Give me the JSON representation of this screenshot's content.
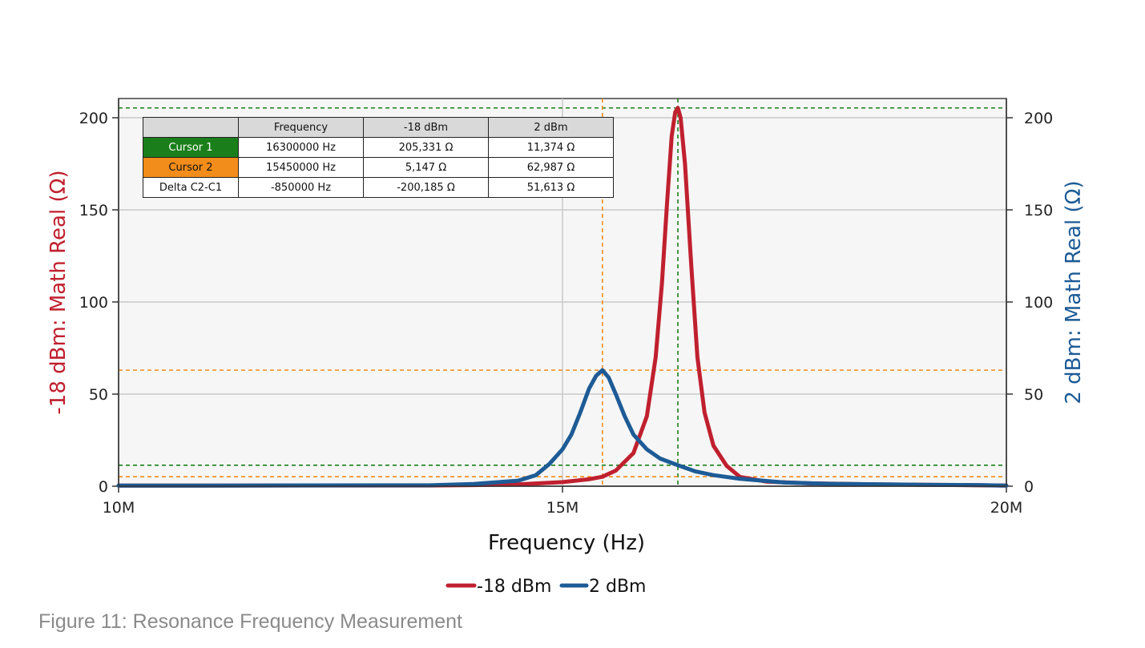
{
  "chart_data": {
    "type": "line",
    "xlabel": "Frequency (Hz)",
    "ylabel_left": "-18 dBm: Math Real (Ω)",
    "ylabel_right": "2 dBm: Math Real (Ω)",
    "x_ticks": [
      {
        "value": 10000000,
        "label": "10M"
      },
      {
        "value": 15000000,
        "label": "15M"
      },
      {
        "value": 20000000,
        "label": "20M"
      }
    ],
    "y_ticks": [
      0,
      50,
      100,
      150,
      200
    ],
    "xlim": [
      10000000,
      20000000
    ],
    "ylim": [
      0,
      200
    ],
    "grid": true,
    "legend_placement": "bottom",
    "series": [
      {
        "name": "-18 dBm",
        "color": "#c0202e",
        "axis": "left",
        "peak": {
          "x": 16300000,
          "y": 205.331
        },
        "points": [
          [
            13500000,
            0.4
          ],
          [
            14000000,
            0.6
          ],
          [
            14500000,
            1.0
          ],
          [
            15000000,
            2.2
          ],
          [
            15300000,
            3.8
          ],
          [
            15450000,
            5.147
          ],
          [
            15600000,
            8.5
          ],
          [
            15800000,
            18
          ],
          [
            15950000,
            38
          ],
          [
            16050000,
            70
          ],
          [
            16120000,
            110
          ],
          [
            16180000,
            155
          ],
          [
            16230000,
            190
          ],
          [
            16270000,
            203
          ],
          [
            16300000,
            205.331
          ],
          [
            16330000,
            200
          ],
          [
            16380000,
            175
          ],
          [
            16450000,
            120
          ],
          [
            16520000,
            70
          ],
          [
            16600000,
            40
          ],
          [
            16700000,
            22
          ],
          [
            16850000,
            11
          ],
          [
            17000000,
            5
          ],
          [
            17300000,
            2.5
          ],
          [
            17800000,
            1.5
          ],
          [
            18500000,
            1.0
          ],
          [
            19500000,
            0.6
          ]
        ]
      },
      {
        "name": "2 dBm",
        "color": "#1d5b96",
        "axis": "right",
        "peak": {
          "x": 15450000,
          "y": 62.987
        },
        "points": [
          [
            13500000,
            0.5
          ],
          [
            14000000,
            1.2
          ],
          [
            14500000,
            3
          ],
          [
            14700000,
            6
          ],
          [
            14850000,
            12
          ],
          [
            15000000,
            20
          ],
          [
            15100000,
            28
          ],
          [
            15200000,
            40
          ],
          [
            15300000,
            53
          ],
          [
            15380000,
            60
          ],
          [
            15450000,
            62.987
          ],
          [
            15520000,
            59
          ],
          [
            15600000,
            50
          ],
          [
            15700000,
            38
          ],
          [
            15800000,
            28
          ],
          [
            15950000,
            20
          ],
          [
            16100000,
            15
          ],
          [
            16300000,
            11.374
          ],
          [
            16500000,
            8
          ],
          [
            16700000,
            6
          ],
          [
            17000000,
            4
          ],
          [
            17500000,
            2
          ],
          [
            18000000,
            1.3
          ],
          [
            19000000,
            0.8
          ],
          [
            19700000,
            0.6
          ]
        ]
      }
    ],
    "cursors": [
      {
        "name": "Cursor 1",
        "color": "#1a7f1a",
        "x": 16300000,
        "y_left": 205.331,
        "y_right": 11.374
      },
      {
        "name": "Cursor 2",
        "color": "#f28c1a",
        "x": 15450000,
        "y_left": 5.147,
        "y_right": 62.987
      }
    ]
  },
  "cursor_table": {
    "headers": [
      "",
      "Frequency",
      "-18 dBm",
      "2 dBm"
    ],
    "rows": [
      [
        "Cursor 1",
        "16300000 Hz",
        "205,331 Ω",
        "11,374 Ω"
      ],
      [
        "Cursor 2",
        "15450000 Hz",
        "5,147 Ω",
        "62,987 Ω"
      ],
      [
        "Delta C2-C1",
        "-850000 Hz",
        "-200,185 Ω",
        "51,613 Ω"
      ]
    ]
  },
  "caption": "Figure 11: Resonance Frequency Measurement"
}
